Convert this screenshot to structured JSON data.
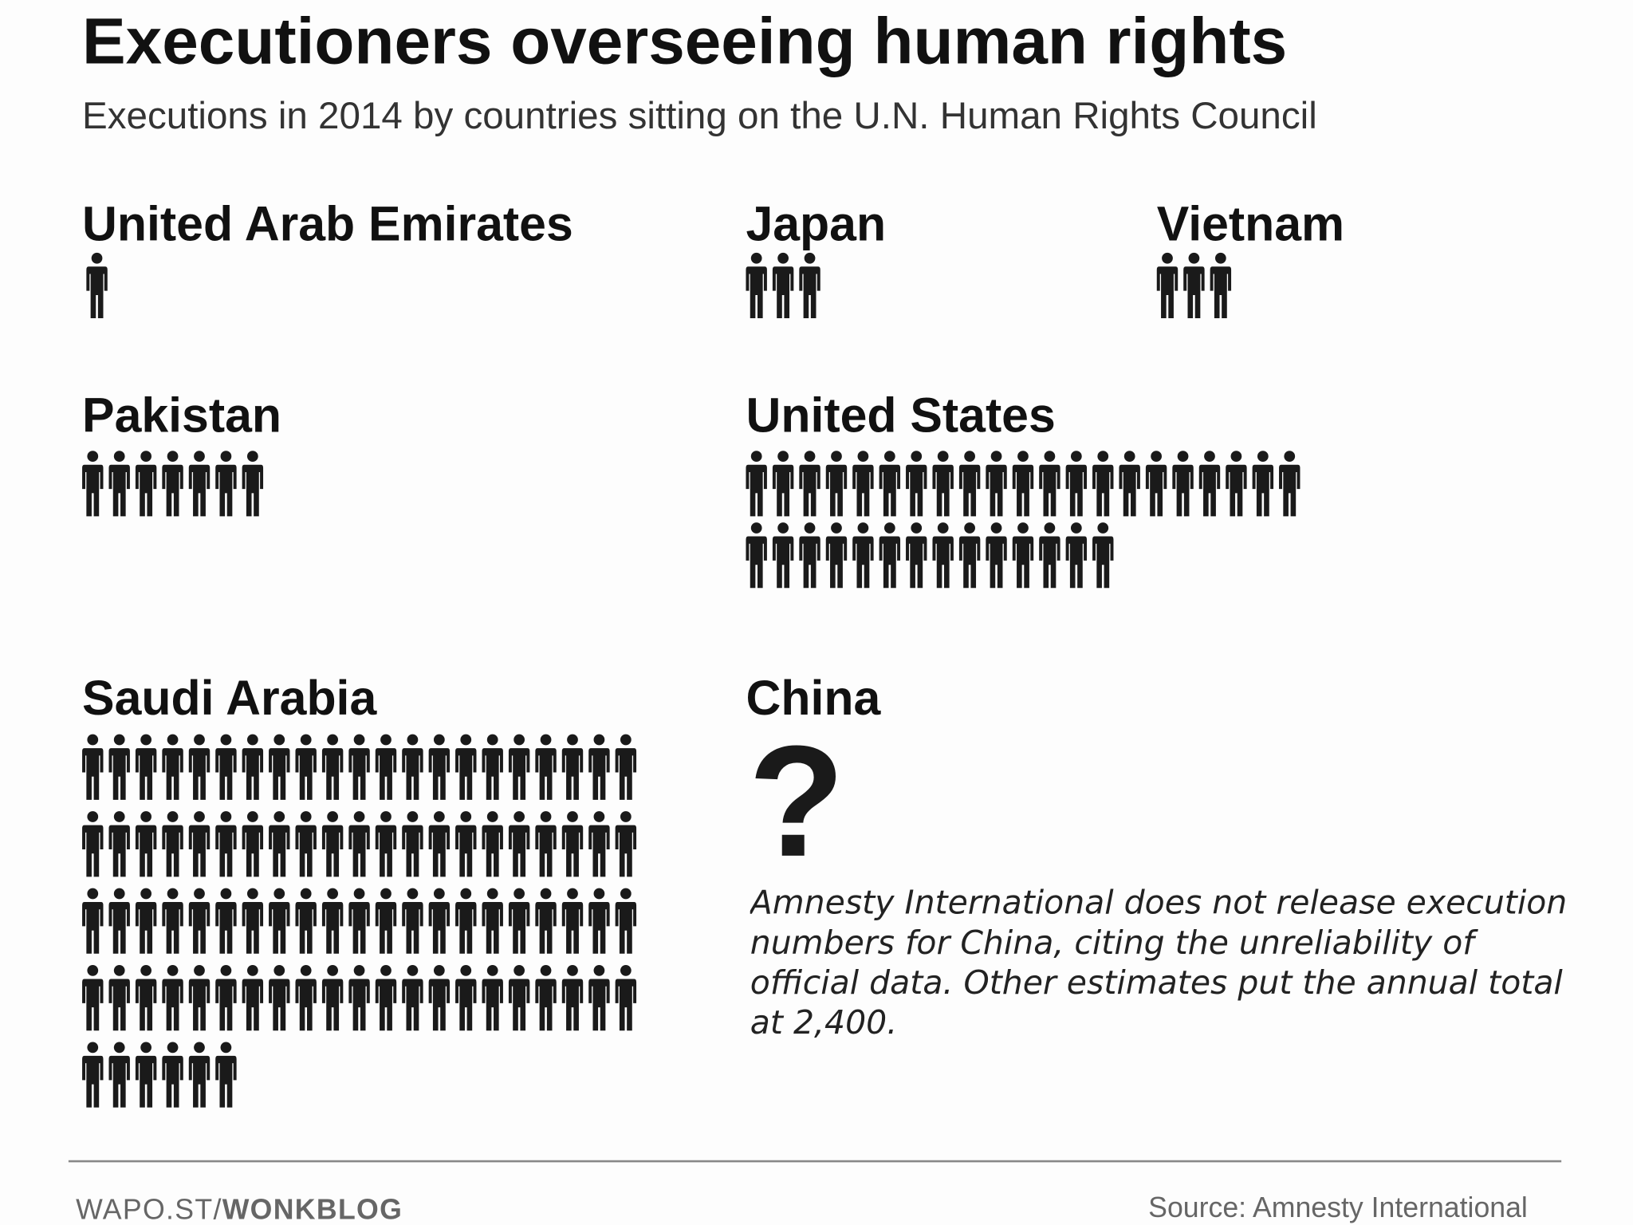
{
  "chart_data": {
    "type": "pictograph",
    "title": "Executioners overseeing human rights",
    "subtitle": "Executions in 2014 by countries sitting on the U.N. Human Rights Council",
    "categories": [
      "United Arab Emirates",
      "Japan",
      "Vietnam",
      "Pakistan",
      "United States",
      "Saudi Arabia",
      "China"
    ],
    "values": [
      1,
      3,
      3,
      7,
      35,
      90,
      null
    ],
    "value_labels": [
      null,
      null,
      null,
      null,
      null,
      null,
      "?"
    ],
    "color": "#1a1a1a",
    "note": "Amnesty International does not release execution numbers for China, citing the unreliability of official data. Other estimates put the annual total at 2,400.",
    "credit_prefix": "WAPO.ST/",
    "credit_name": "WONKBLOG",
    "source": "Source: Amnesty International"
  }
}
